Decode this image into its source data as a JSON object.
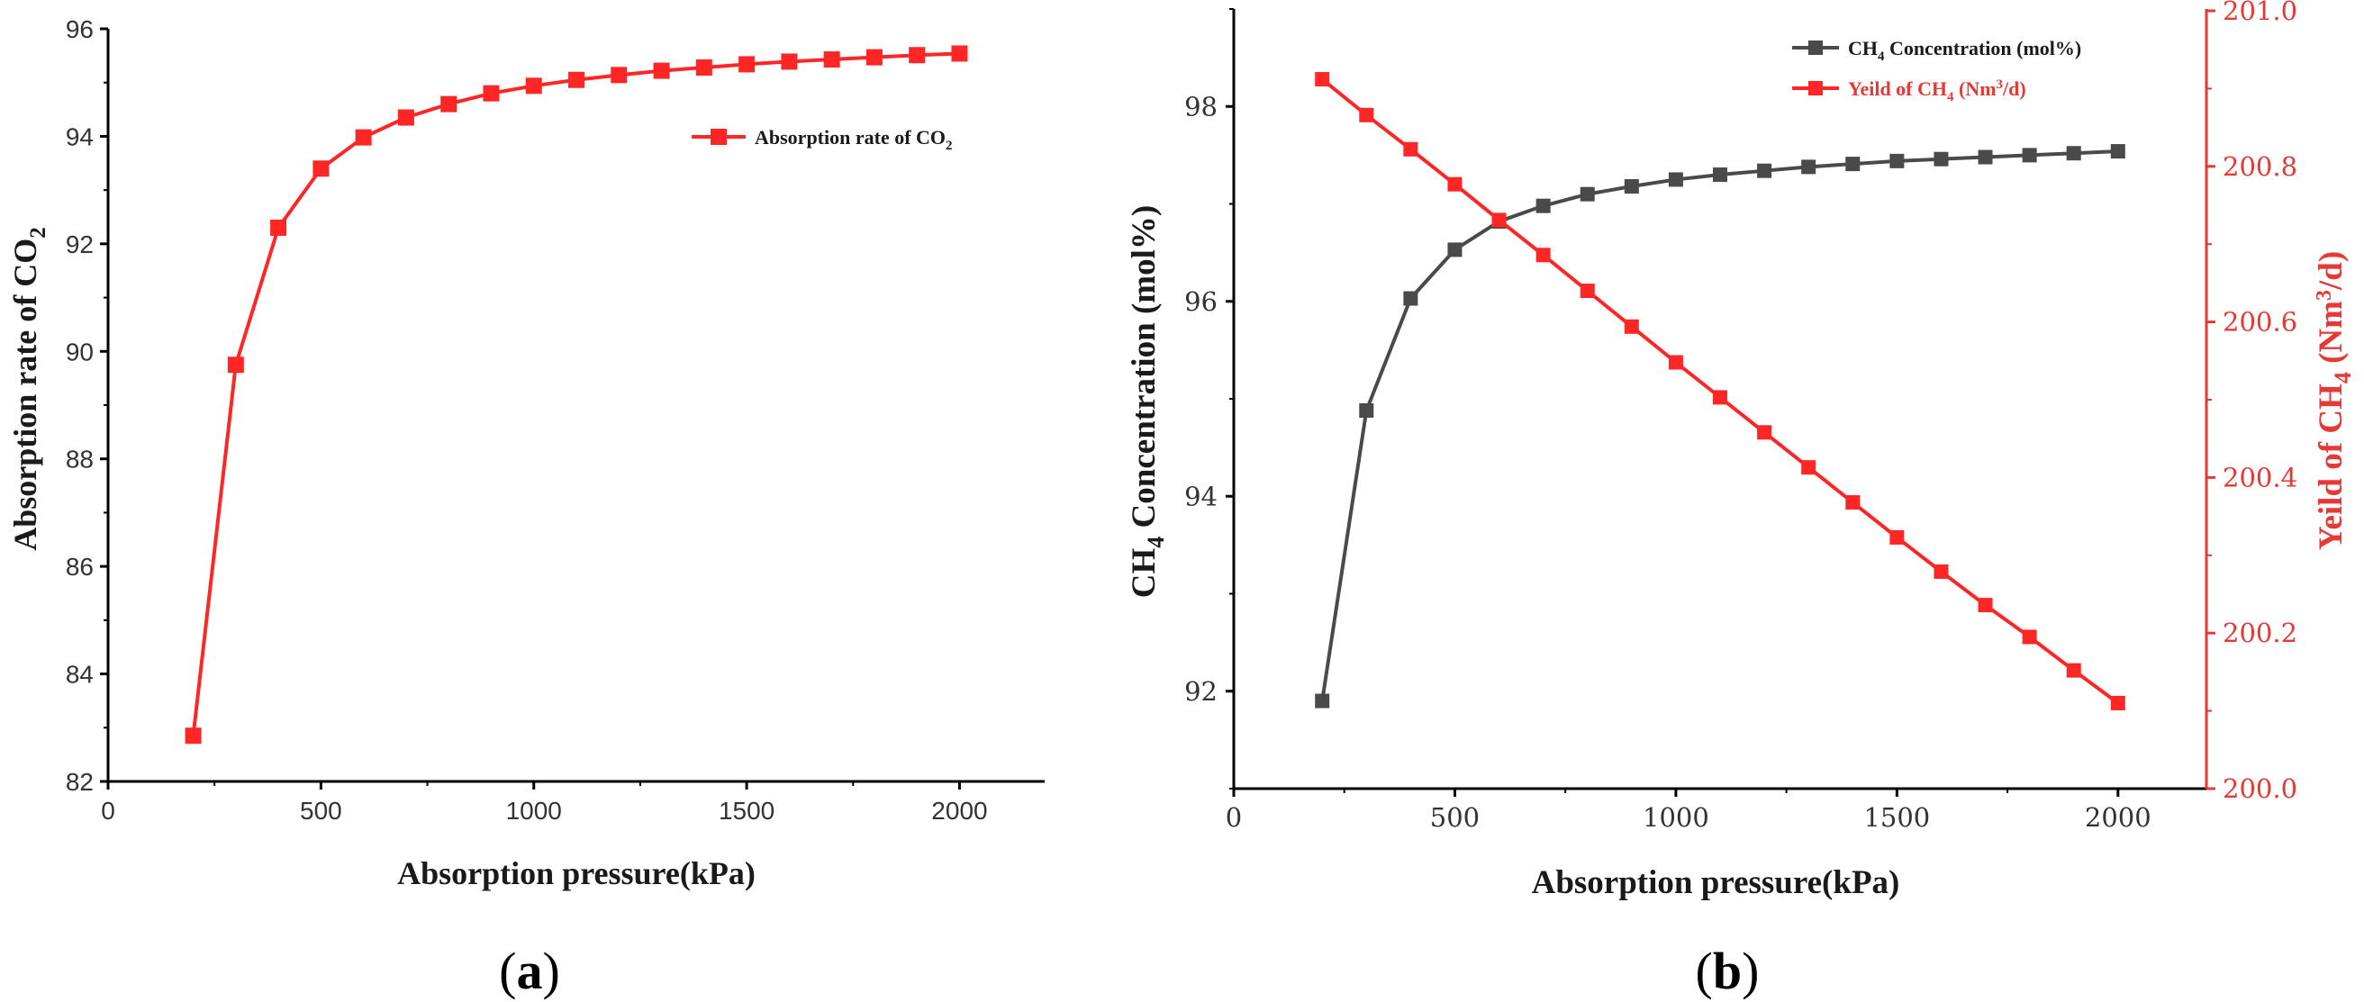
{
  "colors": {
    "red": "#ff2626",
    "red_axis": "#e53935",
    "gray": "#4a4a4a",
    "axis": "#000000"
  },
  "panels": {
    "a": {
      "label_open": "(",
      "label_letter": "a",
      "label_close": ")"
    },
    "b": {
      "label_open": "(",
      "label_letter": "b",
      "label_close": ")"
    }
  },
  "chart_data": [
    {
      "id": "a",
      "type": "line",
      "xlabel": "Absorption pressure(kPa)",
      "ylabel": {
        "main": "Absorption rate of CO",
        "sub": "2"
      },
      "xlim": [
        0,
        2200
      ],
      "ylim": [
        82,
        96
      ],
      "xticks": [
        "0",
        "500",
        "1000",
        "1500",
        "2000"
      ],
      "yticks": [
        "82",
        "84",
        "86",
        "88",
        "90",
        "92",
        "94",
        "96"
      ],
      "legend": {
        "main": "Absorption rate of CO",
        "sub": "2",
        "position": "top-right"
      },
      "x": [
        200,
        300,
        400,
        500,
        600,
        700,
        800,
        900,
        1000,
        1100,
        1200,
        1300,
        1400,
        1500,
        1600,
        1700,
        1800,
        1900,
        2000
      ],
      "series": [
        {
          "name": "Absorption rate of CO2",
          "color": "#ff2626",
          "values": [
            82.85,
            89.75,
            92.3,
            93.4,
            93.98,
            94.35,
            94.6,
            94.8,
            94.94,
            95.05,
            95.14,
            95.22,
            95.28,
            95.34,
            95.39,
            95.43,
            95.47,
            95.51,
            95.54
          ]
        }
      ]
    },
    {
      "id": "b",
      "type": "line",
      "xlabel": "Absorption pressure(kPa)",
      "ylabel_left": {
        "a": "CH",
        "sub": "4",
        "b": " Concentration (mol%)"
      },
      "ylabel_right": {
        "a": "Yeild of CH",
        "sub": "4",
        "b": " (Nm",
        "sup": "3",
        "c": "/d)"
      },
      "xlim": [
        0,
        2200
      ],
      "ylim_left": [
        91,
        99
      ],
      "ylim_right": [
        200.0,
        201.0
      ],
      "xticks": [
        "0",
        "500",
        "1000",
        "1500",
        "2000"
      ],
      "yticks_left": [
        "92",
        "94",
        "96",
        "98"
      ],
      "yticks_right": [
        "200.0",
        "200.2",
        "200.4",
        "200.6",
        "200.8",
        "201.0"
      ],
      "legend": [
        {
          "a": "CH",
          "sub": "4",
          "b": " Concentration (mol%)",
          "color": "#4a4a4a"
        },
        {
          "a": "Yeild of CH",
          "sub": "4",
          "b": " (Nm",
          "sup": "3",
          "c": "/d)",
          "color": "#ff2626"
        }
      ],
      "legend_position": "top-right",
      "x": [
        200,
        300,
        400,
        500,
        600,
        700,
        800,
        900,
        1000,
        1100,
        1200,
        1300,
        1400,
        1500,
        1600,
        1700,
        1800,
        1900,
        2000
      ],
      "series": [
        {
          "name": "CH4 Concentration (mol%)",
          "axis": "left",
          "color": "#4a4a4a",
          "values": [
            91.9,
            94.88,
            96.03,
            96.53,
            96.82,
            96.98,
            97.1,
            97.18,
            97.25,
            97.3,
            97.34,
            97.38,
            97.41,
            97.44,
            97.46,
            97.48,
            97.5,
            97.52,
            97.54
          ]
        },
        {
          "name": "Yeild of CH4 (Nm3/d)",
          "axis": "right",
          "color": "#ff2626",
          "values": [
            200.912,
            200.866,
            200.822,
            200.777,
            200.731,
            200.686,
            200.64,
            200.594,
            200.548,
            200.503,
            200.458,
            200.413,
            200.368,
            200.323,
            200.279,
            200.236,
            200.195,
            200.152,
            200.11
          ]
        }
      ]
    }
  ]
}
